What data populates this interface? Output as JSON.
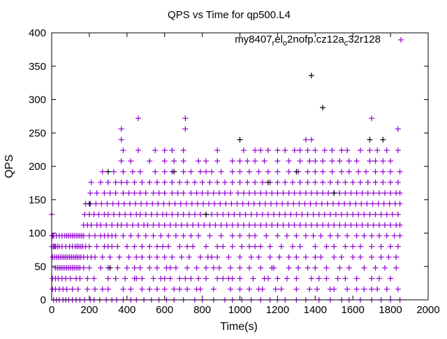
{
  "chart_data": {
    "type": "scatter",
    "title": "QPS vs Time for qp500.L4",
    "xlabel": "Time(s)",
    "ylabel": "QPS",
    "xlim": [
      0,
      2000
    ],
    "ylim": [
      0,
      400
    ],
    "xticks": [
      "0",
      "200",
      "400",
      "600",
      "800",
      "1000",
      "1200",
      "1400",
      "1600",
      "1800",
      "2000"
    ],
    "yticks": [
      "0",
      "50",
      "100",
      "150",
      "200",
      "250",
      "300",
      "350",
      "400"
    ],
    "grid": false,
    "legend_placement": "top-right",
    "series": [
      {
        "name_segments": [
          {
            "t": "my8407",
            "sub": false
          },
          {
            "t": "r",
            "sub": true
          },
          {
            "t": "el",
            "sub": false
          },
          {
            "t": "o",
            "sub": true
          },
          {
            "t": "2nofp.cz12a",
            "sub": false
          },
          {
            "t": "c",
            "sub": true
          },
          {
            "t": "32r128",
            "sub": false
          }
        ],
        "color": "#9400d3",
        "marker": "plus",
        "levels": [
          {
            "y": 0,
            "x": [
              10,
              25,
              40,
              60,
              75,
              90,
              110,
              130,
              150,
              175,
              205,
              225,
              255,
              290,
              320,
              345,
              380,
              420,
              450,
              490,
              530,
              570,
              610,
              650,
              700,
              760,
              800,
              860,
              920,
              960,
              1010,
              1060,
              1110,
              1160,
              1200,
              1240,
              1300,
              1350,
              1420,
              1480,
              1540,
              1580,
              1640,
              1700,
              1750,
              1800,
              1850
            ]
          },
          {
            "y": 16,
            "x": [
              5,
              20,
              40,
              60,
              80,
              110,
              140,
              190,
              230,
              270,
              300,
              380,
              420,
              480,
              520,
              560,
              600,
              650,
              680,
              720,
              770,
              790,
              860,
              950,
              1000,
              1050,
              1100,
              1120,
              1190,
              1220,
              1300,
              1370,
              1410,
              1480,
              1500,
              1570,
              1620,
              1660,
              1700,
              1730,
              1780,
              1840
            ]
          },
          {
            "y": 32,
            "x": [
              5,
              20,
              35,
              55,
              75,
              100,
              130,
              150,
              190,
              225,
              300,
              340,
              390,
              440,
              450,
              480,
              540,
              580,
              600,
              630,
              680,
              710,
              740,
              780,
              820,
              880,
              910,
              940,
              960,
              1000,
              1070,
              1130,
              1150,
              1200,
              1250,
              1300,
              1380,
              1420,
              1460,
              1520,
              1560,
              1620,
              1700,
              1740,
              1800
            ]
          },
          {
            "y": 48,
            "x": [
              20,
              30,
              40,
              50,
              60,
              70,
              80,
              90,
              100,
              110,
              120,
              130,
              140,
              150,
              170,
              200,
              260,
              300,
              350,
              400,
              440,
              470,
              520,
              560,
              610,
              630,
              660,
              720,
              770,
              820,
              860,
              890,
              950,
              1000,
              1050,
              1110,
              1170,
              1180,
              1260,
              1310,
              1360,
              1400,
              1460,
              1530,
              1580,
              1660,
              1720,
              1770,
              1830
            ]
          },
          {
            "y": 64,
            "x": [
              5,
              15,
              25,
              35,
              45,
              55,
              65,
              75,
              85,
              95,
              105,
              115,
              125,
              135,
              145,
              155,
              170,
              190,
              210,
              230,
              270,
              310,
              360,
              410,
              450,
              480,
              520,
              560,
              600,
              640,
              690,
              730,
              790,
              830,
              850,
              880,
              940,
              1000,
              1060,
              1100,
              1160,
              1210,
              1260,
              1300,
              1350,
              1400,
              1430,
              1500,
              1540,
              1600,
              1640,
              1700,
              1750,
              1790,
              1830
            ]
          },
          {
            "y": 80,
            "x": [
              2,
              10,
              15,
              20,
              30,
              40,
              55,
              75,
              95,
              110,
              125,
              135,
              145,
              155,
              165,
              180,
              200,
              240,
              280,
              300,
              320,
              350,
              400,
              440,
              480,
              520,
              560,
              590,
              620,
              680,
              720,
              750,
              820,
              880,
              910,
              960,
              1010,
              1050,
              1080,
              1110,
              1160,
              1220,
              1280,
              1320,
              1400,
              1460,
              1500,
              1560,
              1600,
              1640,
              1700,
              1750,
              1800,
              1840
            ]
          },
          {
            "y": 96,
            "x": [
              2,
              5,
              10,
              25,
              40,
              55,
              70,
              80,
              90,
              100,
              110,
              120,
              130,
              140,
              150,
              160,
              170,
              200,
              230,
              260,
              280,
              300,
              320,
              340,
              380,
              420,
              460,
              500,
              540,
              580,
              620,
              660,
              700,
              740,
              780,
              840,
              900,
              960,
              1000,
              1050,
              1080,
              1140,
              1200,
              1250,
              1300,
              1350,
              1390,
              1430,
              1480,
              1520,
              1570,
              1620,
              1660,
              1700,
              1740,
              1780,
              1820,
              1850
            ]
          },
          {
            "y": 112,
            "x": [
              170,
              190,
              210,
              240,
              260,
              290,
              320,
              350,
              370,
              400,
              430,
              460,
              490,
              510,
              540,
              570,
              600,
              630,
              660,
              690,
              720,
              750,
              780,
              810,
              840,
              870,
              900,
              930,
              960,
              990,
              1020,
              1050,
              1080,
              1110,
              1140,
              1170,
              1200,
              1230,
              1260,
              1290,
              1320,
              1350,
              1380,
              1410,
              1440,
              1470,
              1500,
              1530,
              1560,
              1590,
              1620,
              1650,
              1680,
              1710,
              1740,
              1770,
              1800,
              1830,
              1850
            ]
          },
          {
            "y": 128,
            "x": [
              0,
              175,
              200,
              225,
              250,
              280,
              300,
              330,
              360,
              390,
              420,
              450,
              470,
              500,
              530,
              560,
              590,
              610,
              640,
              670,
              700,
              730,
              760,
              790,
              820,
              850,
              880,
              910,
              940,
              970,
              1000,
              1030,
              1060,
              1090,
              1120,
              1150,
              1180,
              1210,
              1240,
              1270,
              1300,
              1330,
              1360,
              1390,
              1420,
              1450,
              1480,
              1510,
              1540,
              1570,
              1600,
              1630,
              1660,
              1690,
              1720,
              1750,
              1780,
              1810,
              1840
            ]
          },
          {
            "y": 144,
            "x": [
              180,
              205,
              235,
              265,
              295,
              325,
              355,
              385,
              415,
              445,
              475,
              505,
              535,
              565,
              595,
              625,
              655,
              685,
              715,
              745,
              775,
              805,
              835,
              865,
              895,
              925,
              955,
              985,
              1015,
              1045,
              1075,
              1105,
              1135,
              1165,
              1195,
              1225,
              1255,
              1285,
              1315,
              1345,
              1375,
              1405,
              1435,
              1465,
              1495,
              1525,
              1555,
              1585,
              1615,
              1645,
              1675,
              1705,
              1735,
              1765,
              1795,
              1825,
              1850
            ]
          },
          {
            "y": 160,
            "x": [
              205,
              240,
              280,
              310,
              340,
              380,
              410,
              440,
              470,
              500,
              540,
              570,
              600,
              640,
              670,
              700,
              740,
              770,
              800,
              830,
              860,
              890,
              920,
              950,
              990,
              1020,
              1050,
              1080,
              1110,
              1140,
              1170,
              1200,
              1230,
              1260,
              1290,
              1320,
              1350,
              1380,
              1410,
              1440,
              1470,
              1500,
              1530,
              1560,
              1590,
              1620,
              1650,
              1680,
              1710,
              1740,
              1770,
              1800,
              1830,
              1850
            ]
          },
          {
            "y": 176,
            "x": [
              210,
              260,
              300,
              340,
              370,
              400,
              440,
              480,
              520,
              560,
              600,
              640,
              680,
              720,
              760,
              800,
              840,
              880,
              920,
              960,
              1000,
              1040,
              1080,
              1120,
              1160,
              1200,
              1240,
              1280,
              1320,
              1360,
              1400,
              1440,
              1480,
              1520,
              1560,
              1600,
              1640,
              1680,
              1720,
              1760,
              1800,
              1840
            ]
          },
          {
            "y": 192,
            "x": [
              270,
              330,
              380,
              430,
              470,
              550,
              600,
              640,
              700,
              740,
              790,
              820,
              850,
              900,
              960,
              1000,
              1050,
              1100,
              1150,
              1200,
              1260,
              1310,
              1360,
              1400,
              1440,
              1490,
              1540,
              1580,
              1630,
              1670,
              1720,
              1760,
              1800,
              1850
            ]
          },
          {
            "y": 208,
            "x": [
              370,
              420,
              520,
              600,
              650,
              700,
              780,
              820,
              880,
              960,
              1000,
              1040,
              1080,
              1130,
              1200,
              1260,
              1320,
              1370,
              1400,
              1440,
              1490,
              1530,
              1580,
              1620,
              1690,
              1720,
              1760,
              1800
            ]
          },
          {
            "y": 224,
            "x": [
              380,
              460,
              550,
              600,
              640,
              700,
              880,
              1020,
              1080,
              1110,
              1150,
              1200,
              1240,
              1290,
              1320,
              1360,
              1400,
              1450,
              1490,
              1540,
              1570,
              1640,
              1690,
              1730,
              1780,
              1840
            ]
          },
          {
            "y": 240,
            "x": [
              370,
              1350,
              1380
            ]
          },
          {
            "y": 256,
            "x": [
              370,
              710,
              1840
            ]
          },
          {
            "y": 272,
            "x": [
              460,
              710,
              1700
            ]
          }
        ]
      },
      {
        "color": "#000000",
        "marker": "plus",
        "points": [
          [
            300,
            192
          ],
          [
            1000,
            240
          ],
          [
            1440,
            288
          ],
          [
            1380,
            336
          ],
          [
            1690,
            240
          ],
          [
            1760,
            240
          ],
          [
            310,
            48
          ],
          [
            200,
            144
          ],
          [
            650,
            192
          ],
          [
            1150,
            176
          ],
          [
            1500,
            160
          ],
          [
            820,
            128
          ],
          [
            1300,
            192
          ]
        ]
      }
    ]
  }
}
